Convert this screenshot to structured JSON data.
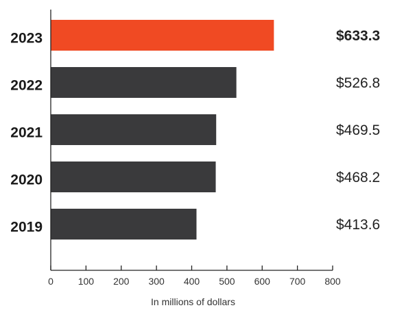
{
  "chart_data": {
    "type": "bar",
    "orientation": "horizontal",
    "categories": [
      "2023",
      "2022",
      "2021",
      "2020",
      "2019"
    ],
    "values": [
      633.3,
      526.8,
      469.5,
      468.2,
      413.6
    ],
    "value_labels": [
      "$633.3",
      "$526.8",
      "$469.5",
      "$468.2",
      "$413.6"
    ],
    "highlight_index": 0,
    "xlabel": "In millions of dollars",
    "xlim": [
      0,
      800
    ],
    "xticks": [
      0,
      100,
      200,
      300,
      400,
      500,
      600,
      700,
      800
    ],
    "grid": false,
    "colors": {
      "highlight": "#f04a23",
      "default": "#3a3a3c",
      "axis": "#222222"
    }
  }
}
